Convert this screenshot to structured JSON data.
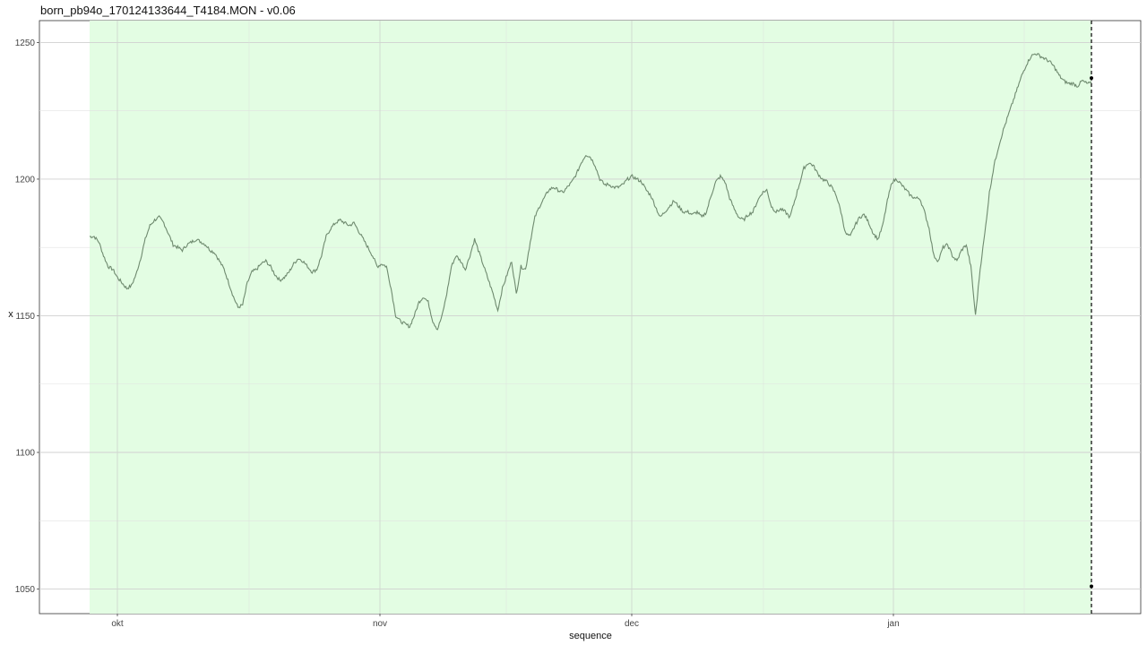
{
  "chart_data": {
    "type": "line",
    "title": "born_pb94o_170124133644_T4184.MON - v0.06",
    "xlabel": "sequence",
    "ylabel": "x",
    "ylim": [
      1041,
      1258
    ],
    "y_ticks": [
      1050,
      1100,
      1150,
      1200,
      1250
    ],
    "x_ticks": [
      "okt",
      "nov",
      "dec",
      "jan"
    ],
    "grid": true,
    "highlight_band": {
      "fill": "#e3fde3"
    },
    "marker_line": {
      "style": "dashed",
      "color": "#000000",
      "endpoints": [
        1237,
        1051
      ]
    },
    "series": [
      {
        "color": "#6f8a6f",
        "values": [
          1179,
          1179,
          1177,
          1172,
          1168,
          1167,
          1164,
          1162,
          1160,
          1161,
          1165,
          1171,
          1178,
          1183,
          1185,
          1186,
          1184,
          1180,
          1176,
          1175,
          1174,
          1176,
          1177,
          1178,
          1177,
          1176,
          1174,
          1173,
          1170,
          1167,
          1162,
          1157,
          1153,
          1154,
          1162,
          1166,
          1167,
          1169,
          1170,
          1168,
          1165,
          1163,
          1164,
          1166,
          1169,
          1171,
          1170,
          1168,
          1166,
          1167,
          1172,
          1179,
          1182,
          1184,
          1185,
          1184,
          1183,
          1184,
          1181,
          1178,
          1175,
          1172,
          1168,
          1169,
          1168,
          1160,
          1150,
          1148,
          1147,
          1146,
          1150,
          1155,
          1157,
          1155,
          1148,
          1145,
          1150,
          1158,
          1168,
          1172,
          1170,
          1167,
          1172,
          1178,
          1173,
          1168,
          1163,
          1158,
          1152,
          1160,
          1165,
          1170,
          1158,
          1168,
          1167,
          1177,
          1186,
          1190,
          1193,
          1196,
          1197,
          1196,
          1195,
          1197,
          1199,
          1202,
          1206,
          1209,
          1208,
          1205,
          1200,
          1198,
          1198,
          1197,
          1197,
          1198,
          1200,
          1201,
          1200,
          1199,
          1196,
          1194,
          1190,
          1186,
          1188,
          1190,
          1192,
          1190,
          1188,
          1188,
          1187,
          1188,
          1186,
          1188,
          1194,
          1199,
          1201,
          1199,
          1193,
          1189,
          1186,
          1185,
          1187,
          1188,
          1192,
          1195,
          1196,
          1190,
          1188,
          1189,
          1188,
          1186,
          1192,
          1198,
          1204,
          1206,
          1205,
          1202,
          1200,
          1199,
          1197,
          1194,
          1188,
          1180,
          1179,
          1183,
          1186,
          1187,
          1184,
          1180,
          1178,
          1183,
          1192,
          1199,
          1200,
          1198,
          1196,
          1194,
          1193,
          1193,
          1188,
          1182,
          1172,
          1170,
          1175,
          1176,
          1172,
          1170,
          1174,
          1176,
          1168,
          1150,
          1167,
          1180,
          1195,
          1205,
          1212,
          1218,
          1223,
          1228,
          1233,
          1238,
          1242,
          1245,
          1246,
          1245,
          1244,
          1243,
          1241,
          1238,
          1236,
          1235,
          1235,
          1234,
          1236,
          1235,
          1235
        ]
      }
    ]
  }
}
